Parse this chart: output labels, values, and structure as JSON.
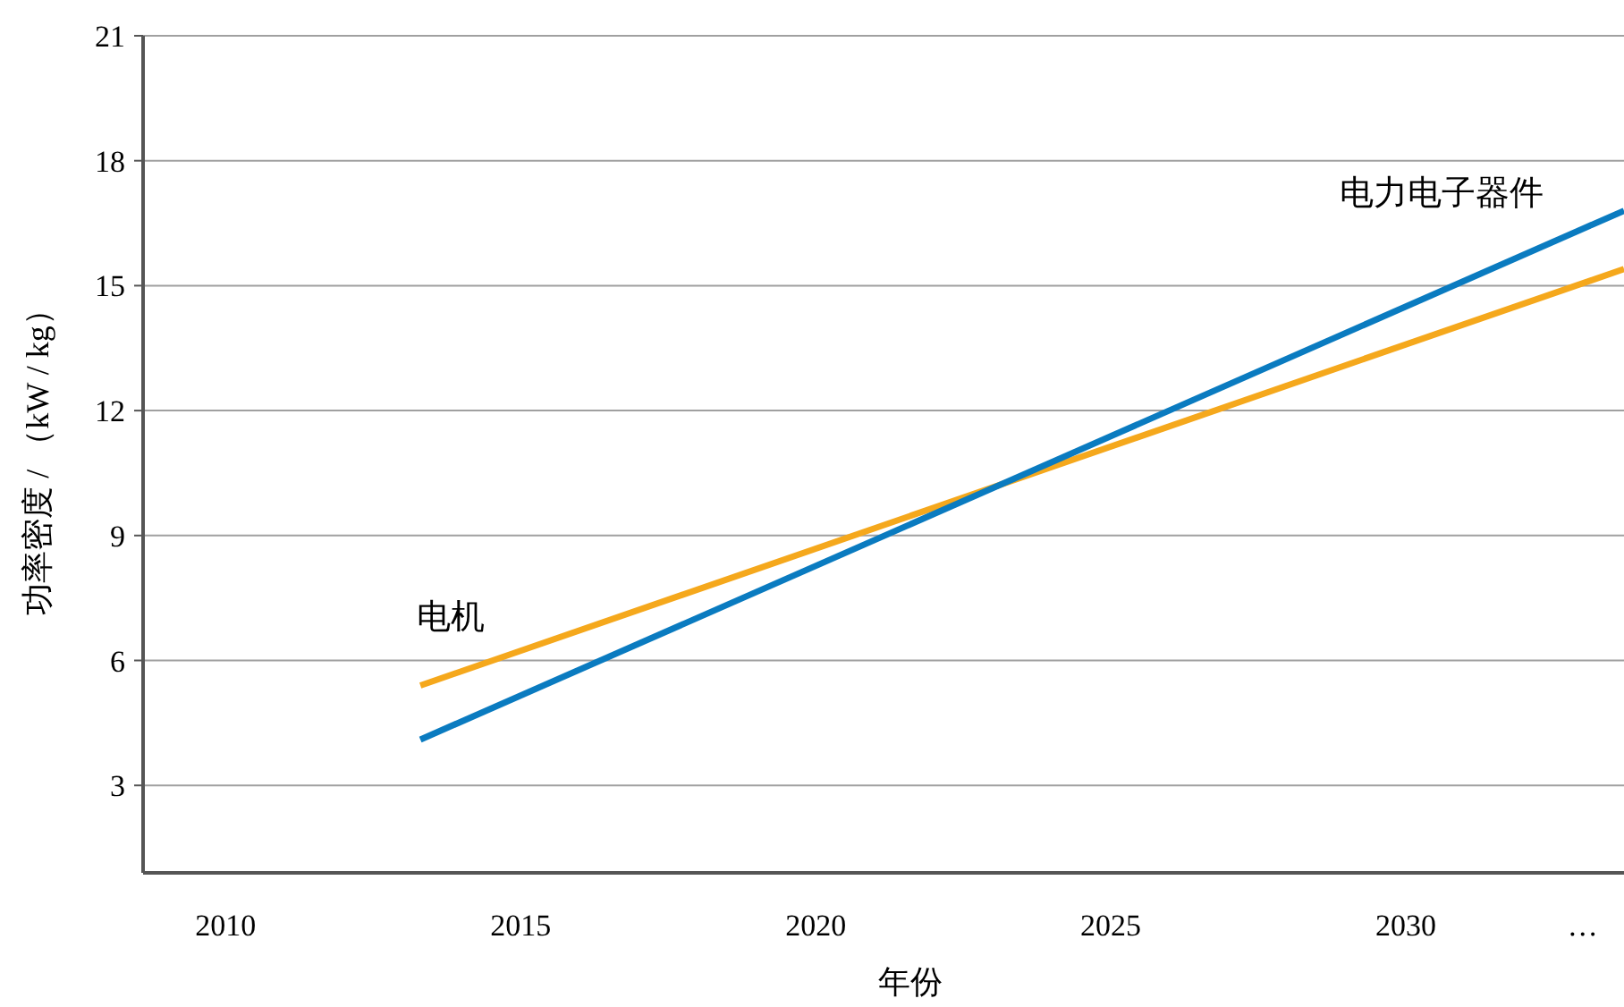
{
  "chart_data": {
    "type": "line",
    "xlabel": "年份",
    "ylabel": "功率密度 / （kW / kg）",
    "xlim": [
      2008.6,
      2033.7
    ],
    "ylim": [
      0.9,
      21
    ],
    "xticks": [
      2010,
      2015,
      2020,
      2025,
      2030,
      {
        "value": 2033,
        "label": "…"
      }
    ],
    "yticks": [
      3,
      6,
      9,
      12,
      15,
      18,
      21
    ],
    "x": [
      2013.3,
      2033.7
    ],
    "grid": "y",
    "legend": false,
    "marker": "none",
    "line_style": "solid",
    "series": [
      {
        "name": "电机",
        "color": "#f5a81c",
        "values": [
          5.4,
          15.4
        ]
      },
      {
        "name": "电力电子器件",
        "color": "#0a7bc0",
        "values": [
          4.1,
          16.8
        ]
      }
    ]
  }
}
